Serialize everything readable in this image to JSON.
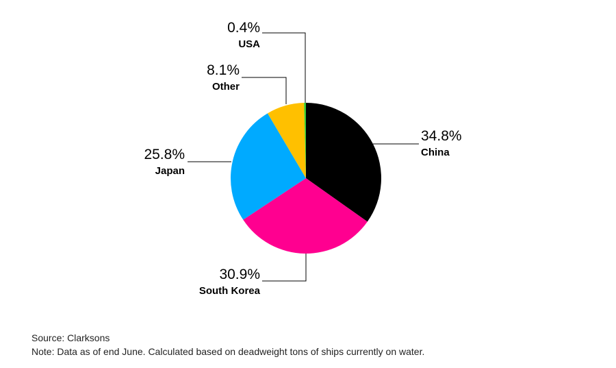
{
  "chart_data": {
    "type": "pie",
    "title": "",
    "start_angle_deg": 0,
    "direction": "clockwise",
    "slices": [
      {
        "label": "China",
        "value": 34.8,
        "display": "34.8%",
        "color": "#000000"
      },
      {
        "label": "South Korea",
        "value": 30.9,
        "display": "30.9%",
        "color": "#ff0090"
      },
      {
        "label": "Japan",
        "value": 25.8,
        "display": "25.8%",
        "color": "#00aaff"
      },
      {
        "label": "Other",
        "value": 8.1,
        "display": "8.1%",
        "color": "#ffc000"
      },
      {
        "label": "USA",
        "value": 0.4,
        "display": "0.4%",
        "color": "#33cc33"
      }
    ]
  },
  "footer": {
    "source": "Source: Clarksons",
    "note": "Note: Data as of end June. Calculated based on deadweight tons of ships currently on water."
  }
}
